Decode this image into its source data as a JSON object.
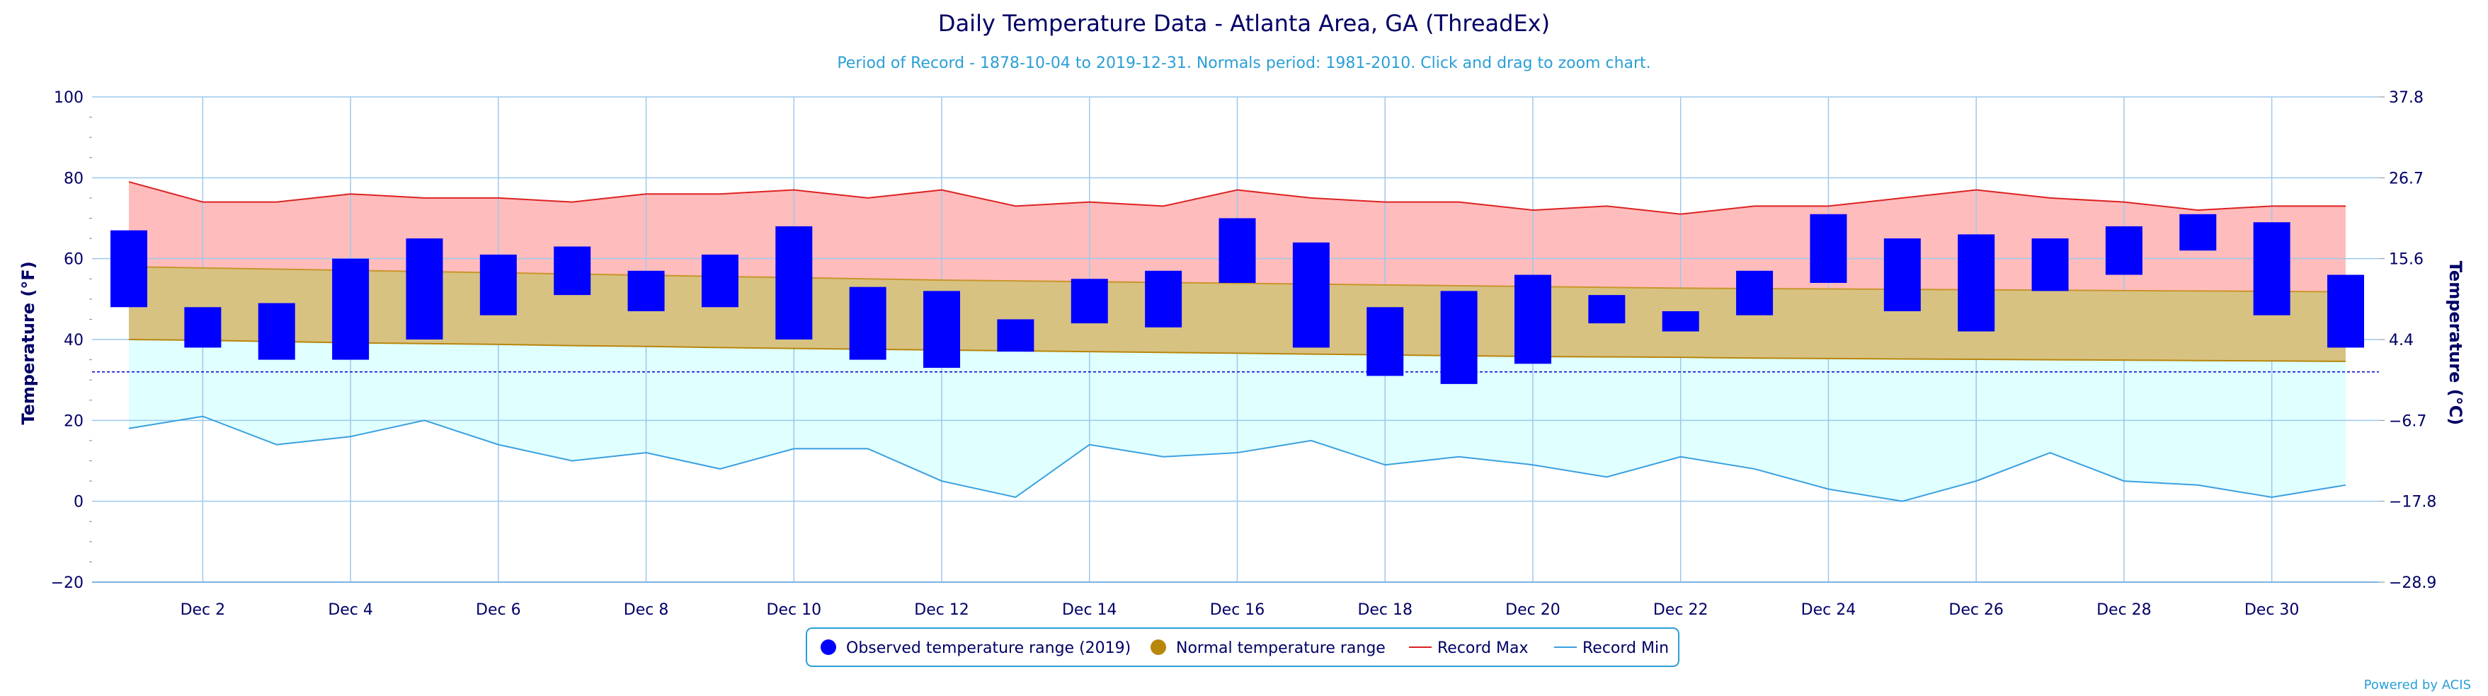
{
  "chart_data": {
    "type": "bar",
    "title": "Daily Temperature Data - Atlanta Area, GA (ThreadEx)",
    "subtitle": "Period of Record - 1878-10-04 to 2019-12-31. Normals period: 1981-2010. Click and drag to zoom chart.",
    "ylabel": "Temperature (°F)",
    "ylabel_right": "Temperature (°C)",
    "ylim": [
      -20,
      100
    ],
    "yticks": [
      -20,
      0,
      20,
      40,
      60,
      80,
      100
    ],
    "yticks_right": [
      "-28.9",
      "-17.8",
      "-6.7",
      "4.4",
      "15.6",
      "26.7",
      "37.8"
    ],
    "days": [
      1,
      2,
      3,
      4,
      5,
      6,
      7,
      8,
      9,
      10,
      11,
      12,
      13,
      14,
      15,
      16,
      17,
      18,
      19,
      20,
      21,
      22,
      23,
      24,
      25,
      26,
      27,
      28,
      29,
      30,
      31
    ],
    "xtick_labels": [
      "Dec 2",
      "Dec 4",
      "Dec 6",
      "Dec 8",
      "Dec 10",
      "Dec 12",
      "Dec 14",
      "Dec 16",
      "Dec 18",
      "Dec 20",
      "Dec 22",
      "Dec 24",
      "Dec 26",
      "Dec 28",
      "Dec 30"
    ],
    "xtick_days": [
      2,
      4,
      6,
      8,
      10,
      12,
      14,
      16,
      18,
      20,
      22,
      24,
      26,
      28,
      30
    ],
    "freezing_line": 32,
    "series": [
      {
        "name": "Observed temperature range (2019)",
        "color": "#0000ff",
        "low": [
          48,
          38,
          35,
          35,
          40,
          46,
          51,
          47,
          48,
          40,
          35,
          33,
          37,
          44,
          43,
          54,
          38,
          31,
          29,
          34,
          44,
          42,
          46,
          54,
          47,
          42,
          52,
          56,
          62,
          46,
          38
        ],
        "high": [
          67,
          48,
          49,
          60,
          65,
          61,
          63,
          57,
          61,
          68,
          53,
          52,
          45,
          55,
          57,
          70,
          64,
          48,
          52,
          56,
          51,
          47,
          57,
          71,
          65,
          66,
          65,
          68,
          71,
          69,
          56
        ]
      },
      {
        "name": "Normal temperature range",
        "color": "#b8860b",
        "low": [
          40,
          39.8,
          39.5,
          39.2,
          39,
          38.8,
          38.5,
          38.3,
          38,
          37.8,
          37.6,
          37.4,
          37.2,
          37,
          36.8,
          36.6,
          36.4,
          36.2,
          36,
          35.8,
          35.7,
          35.6,
          35.4,
          35.3,
          35.2,
          35.1,
          35,
          34.9,
          34.8,
          34.7,
          34.6
        ],
        "high": [
          58,
          57.7,
          57.4,
          57.1,
          56.8,
          56.5,
          56.2,
          55.9,
          55.6,
          55.3,
          55,
          54.7,
          54.5,
          54.3,
          54.1,
          53.9,
          53.7,
          53.5,
          53.3,
          53.1,
          52.9,
          52.7,
          52.6,
          52.5,
          52.4,
          52.3,
          52.2,
          52.1,
          52,
          51.9,
          51.8
        ]
      },
      {
        "name": "Record Max",
        "color": "#dd2222",
        "values": [
          79,
          74,
          74,
          76,
          75,
          75,
          74,
          76,
          76,
          77,
          75,
          77,
          73,
          74,
          73,
          77,
          75,
          74,
          74,
          72,
          73,
          71,
          73,
          73,
          75,
          77,
          75,
          74,
          72,
          73,
          73
        ]
      },
      {
        "name": "Record Min",
        "color": "#3aa0e0",
        "values": [
          18,
          21,
          14,
          16,
          20,
          14,
          10,
          12,
          8,
          13,
          13,
          5,
          1,
          14,
          11,
          12,
          15,
          9,
          11,
          9,
          6,
          11,
          8,
          3,
          0,
          5,
          12,
          5,
          4,
          1,
          4
        ]
      }
    ],
    "legend_position": "bottom-center",
    "grid": true
  },
  "credit": "Powered by ACIS"
}
